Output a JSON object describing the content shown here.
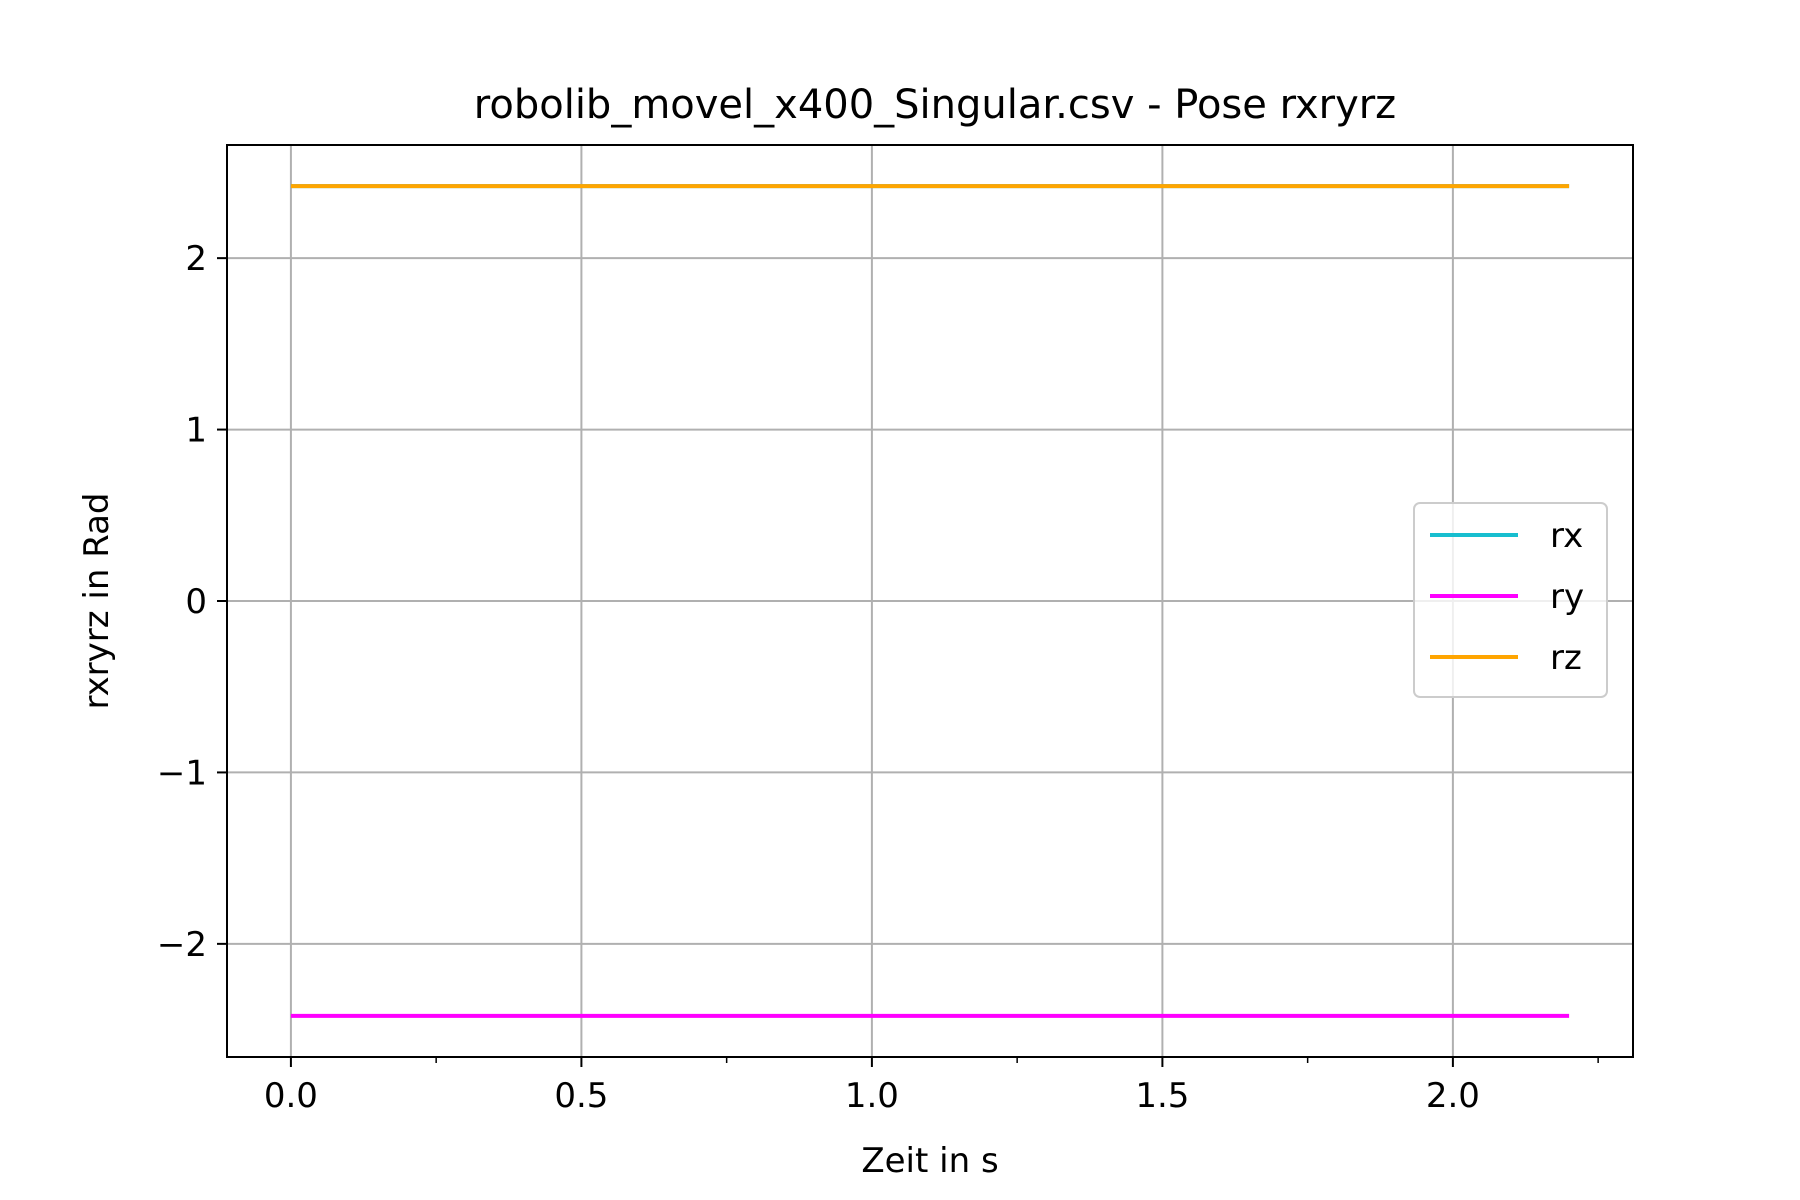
{
  "chart_data": {
    "type": "line",
    "title": "robolib_movel_x400_Singular.csv - Pose rxryrz",
    "xlabel": "Zeit in s",
    "ylabel": "rxryrz in Rad",
    "xlim": [
      -0.11,
      2.31
    ],
    "ylim": [
      -2.66,
      2.66
    ],
    "grid": true,
    "legend_position": "center-right",
    "x_ticks": [
      0.0,
      0.5,
      1.0,
      1.5,
      2.0
    ],
    "x_tick_labels": [
      "0.0",
      "0.5",
      "1.0",
      "1.5",
      "2.0"
    ],
    "x_minor_ticks": [
      0.25,
      0.75,
      1.25,
      1.75,
      2.25
    ],
    "y_ticks": [
      -2,
      -1,
      0,
      1,
      2
    ],
    "y_tick_labels": [
      "−2",
      "−1",
      "0",
      "1",
      "2"
    ],
    "series": [
      {
        "name": "rx",
        "color": "#17becf",
        "x": [
          0.0,
          2.2
        ],
        "y": [
          2.42,
          2.42
        ]
      },
      {
        "name": "ry",
        "color": "#ff00ff",
        "x": [
          0.0,
          2.2
        ],
        "y": [
          -2.42,
          -2.42
        ]
      },
      {
        "name": "rz",
        "color": "#ffa500",
        "x": [
          0.0,
          2.2
        ],
        "y": [
          2.42,
          2.42
        ]
      }
    ]
  }
}
